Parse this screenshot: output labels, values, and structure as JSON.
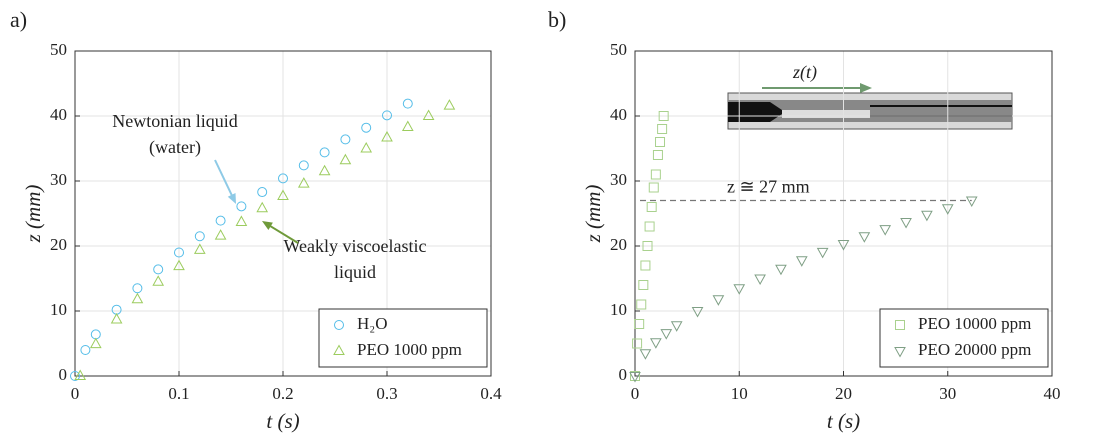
{
  "chart_data": [
    {
      "type": "scatter",
      "label": "a)",
      "xlabel": "t (s)",
      "ylabel": "z (mm)",
      "xlim": [
        0,
        0.4
      ],
      "xticks": [
        0,
        0.1,
        0.2,
        0.3,
        0.4
      ],
      "ylim": [
        0,
        50
      ],
      "yticks": [
        0,
        10,
        20,
        30,
        40,
        50
      ],
      "grid": true,
      "legend": "lower right",
      "series": [
        {
          "name": "H₂O",
          "color": "#55bde8",
          "marker": "circle",
          "x": [
            0,
            0.01,
            0.02,
            0.04,
            0.06,
            0.08,
            0.1,
            0.12,
            0.14,
            0.16,
            0.18,
            0.2,
            0.22,
            0.24,
            0.26,
            0.28,
            0.3,
            0.32
          ],
          "values": [
            0,
            4.0,
            6.4,
            10.2,
            13.5,
            16.4,
            19.0,
            21.5,
            23.9,
            26.1,
            28.3,
            30.4,
            32.4,
            34.4,
            36.4,
            38.2,
            40.1,
            41.9
          ]
        },
        {
          "name": "PEO 1000 ppm",
          "color": "#9ccc5e",
          "marker": "triangle-up",
          "x": [
            0.005,
            0.02,
            0.04,
            0.06,
            0.08,
            0.1,
            0.12,
            0.14,
            0.16,
            0.18,
            0.2,
            0.22,
            0.24,
            0.26,
            0.28,
            0.3,
            0.32,
            0.34,
            0.36
          ],
          "values": [
            0,
            4.9,
            8.7,
            11.8,
            14.5,
            16.9,
            19.4,
            21.6,
            23.7,
            25.8,
            27.7,
            29.6,
            31.5,
            33.2,
            35.0,
            36.7,
            38.3,
            40.0,
            41.6
          ]
        }
      ],
      "annotations": [
        {
          "text": [
            "Newtonian liquid",
            "(water)"
          ],
          "color": "#8ecae6"
        },
        {
          "text": [
            "Weakly viscoelastic",
            "liquid"
          ],
          "color": "#6f9a3a"
        }
      ]
    },
    {
      "type": "scatter",
      "label": "b)",
      "xlabel": "t (s)",
      "ylabel": "z (mm)",
      "xlim": [
        0,
        40
      ],
      "xticks": [
        0,
        10,
        20,
        30,
        40
      ],
      "ylim": [
        0,
        50
      ],
      "yticks": [
        0,
        10,
        20,
        30,
        40,
        50
      ],
      "grid": true,
      "legend": "lower right",
      "series": [
        {
          "name": "PEO 10000 ppm",
          "color": "#a9d18e",
          "marker": "square",
          "x": [
            0,
            0.2,
            0.4,
            0.6,
            0.8,
            1.0,
            1.2,
            1.4,
            1.6,
            1.8,
            2.0,
            2.2,
            2.4,
            2.6,
            2.75
          ],
          "values": [
            0,
            5,
            8,
            11,
            14,
            17,
            20,
            23,
            26,
            29,
            31,
            34,
            36,
            38,
            40
          ]
        },
        {
          "name": "PEO 20000 ppm",
          "color": "#7f9f85",
          "marker": "triangle-down",
          "x": [
            0,
            1,
            2,
            3,
            4,
            6,
            8,
            10,
            12,
            14,
            16,
            18,
            20,
            22,
            24,
            26,
            28,
            30,
            32.3
          ],
          "values": [
            0,
            3.5,
            5.2,
            6.6,
            7.8,
            10.0,
            11.8,
            13.5,
            15.0,
            16.5,
            17.8,
            19.1,
            20.3,
            21.5,
            22.6,
            23.7,
            24.8,
            25.8,
            27.0
          ]
        }
      ],
      "reference_line": {
        "y": 27,
        "label": "z ≅ 27 mm"
      },
      "inset_label": "z(t)"
    }
  ]
}
